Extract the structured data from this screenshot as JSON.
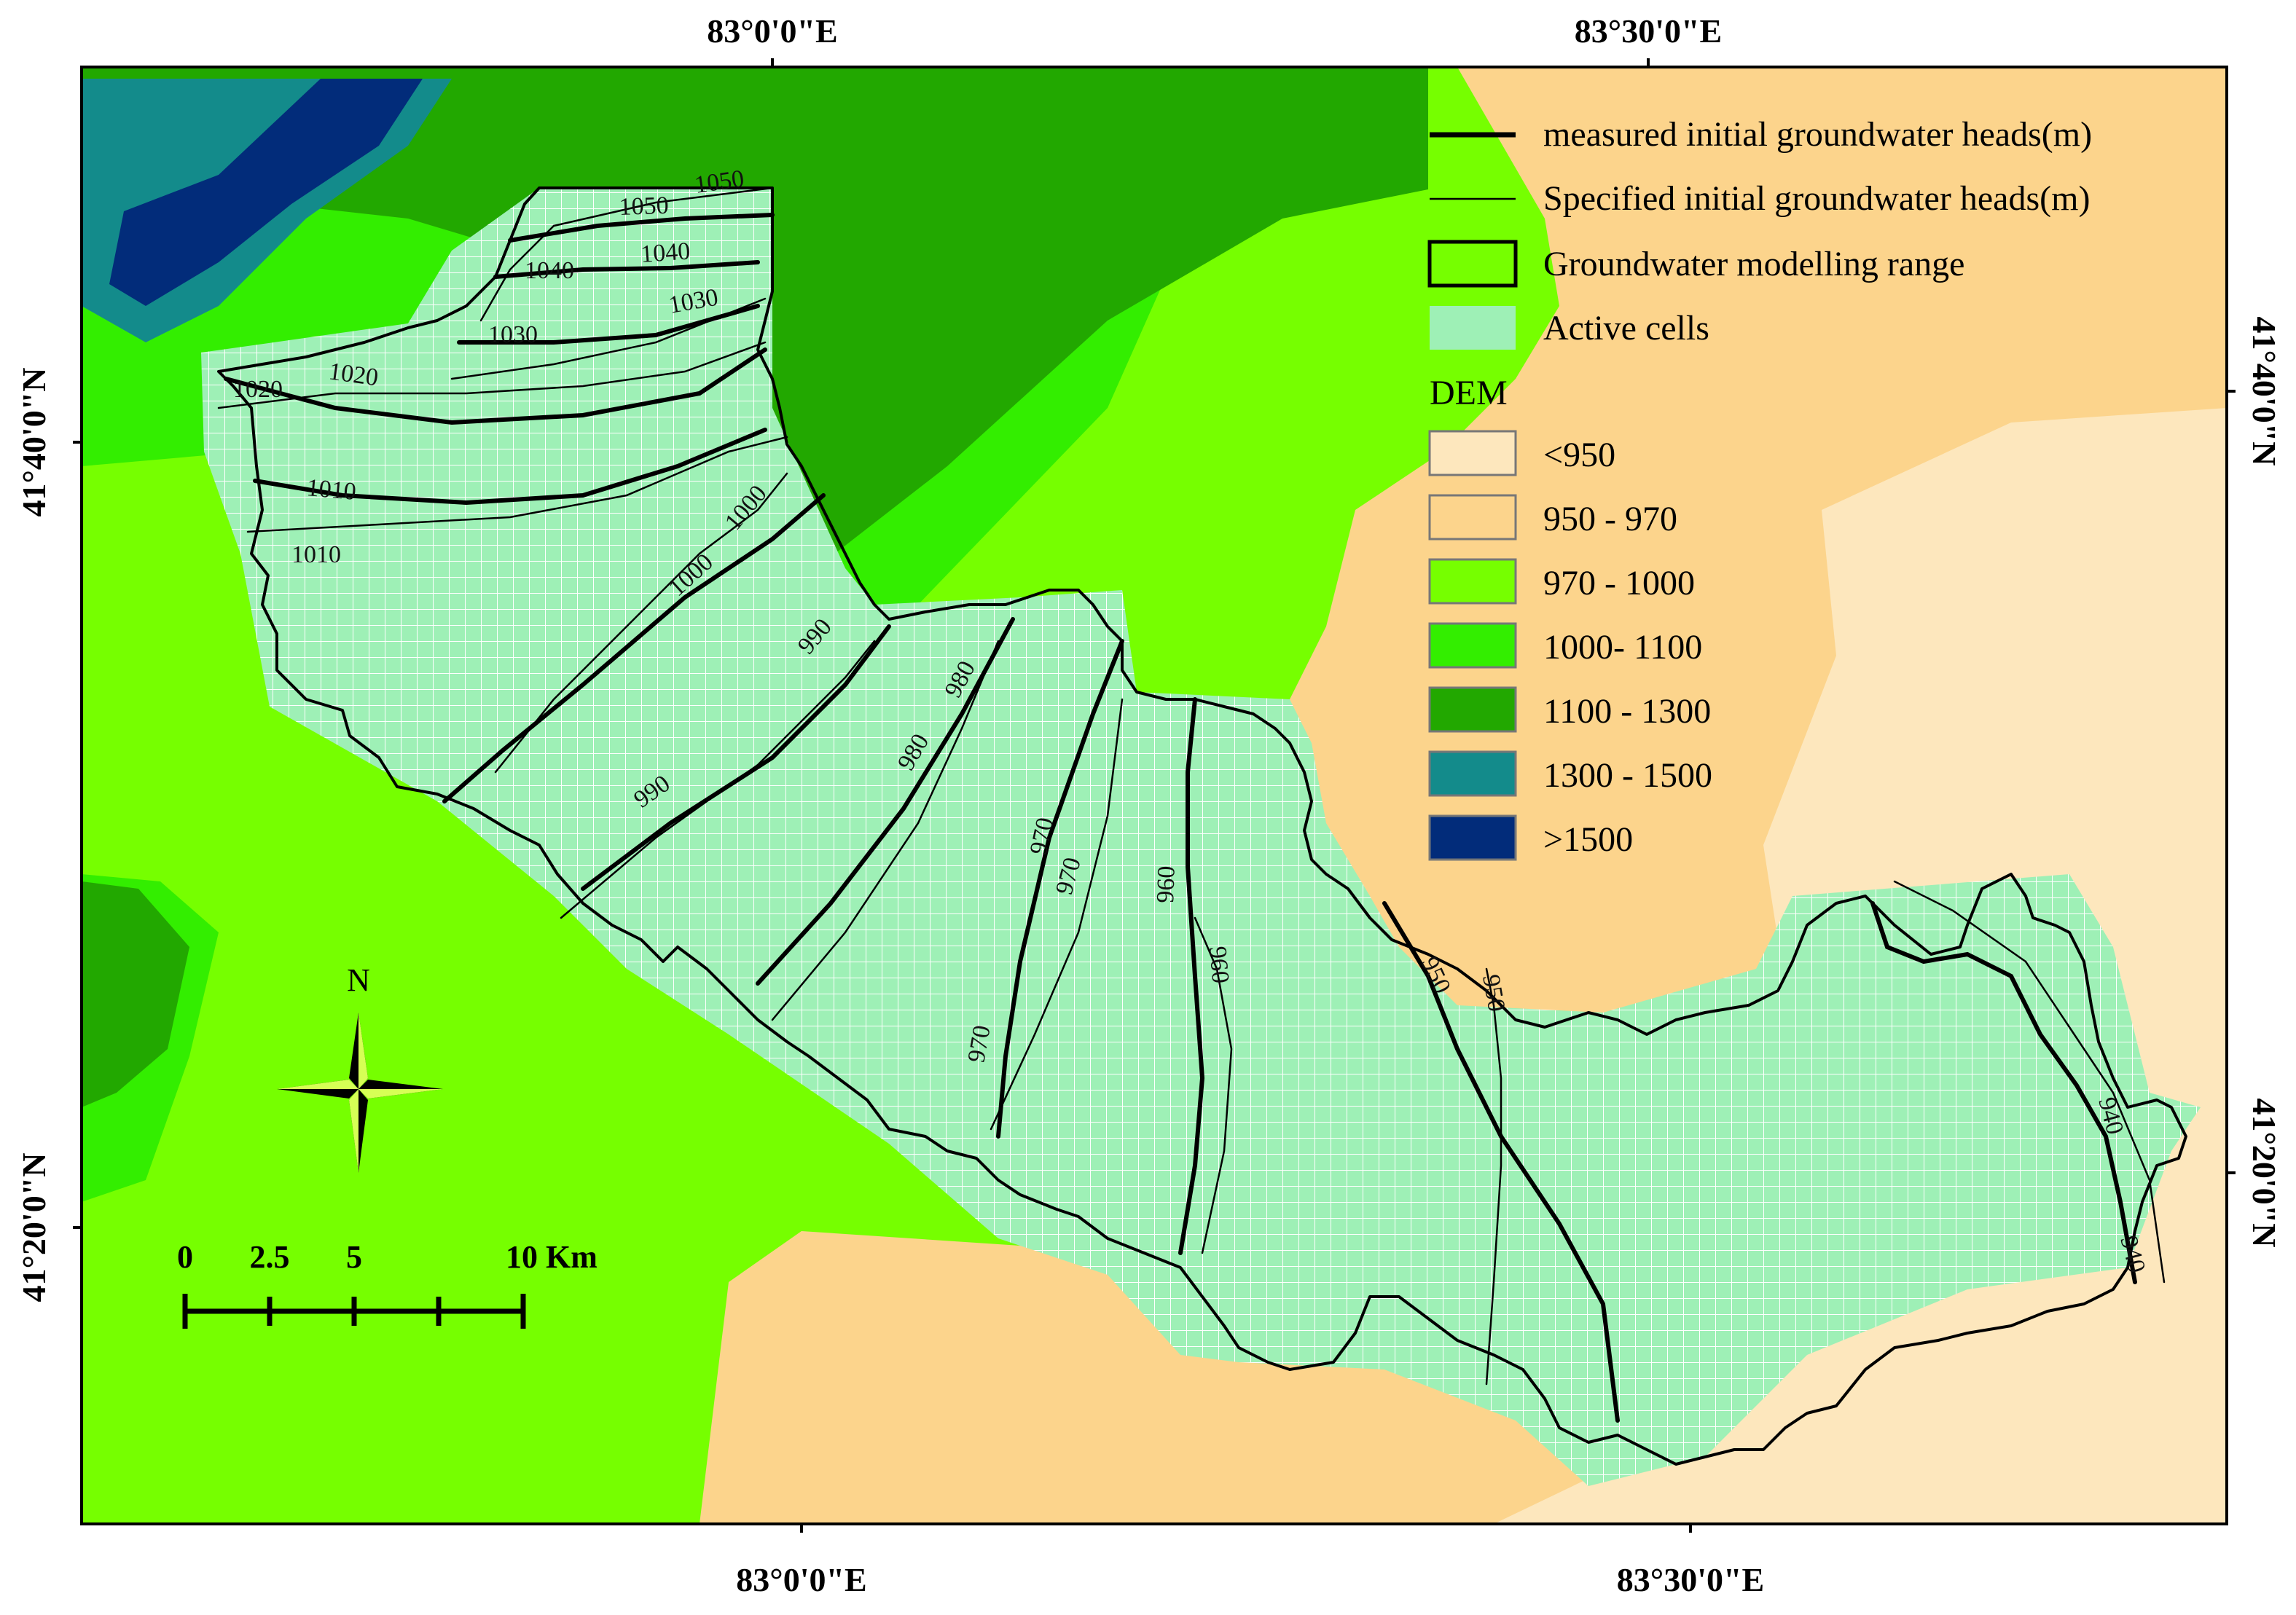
{
  "map": {
    "coordinates": {
      "top": [
        "83°0'0\"E",
        "83°30'0\"E"
      ],
      "bottom": [
        "83°0'0\"E",
        "83°30'0\"E"
      ],
      "left": [
        "41°40'0\"N",
        "41°20'0\"N"
      ],
      "right": [
        "41°40'0\"N",
        "41°20'0\"N"
      ]
    },
    "legend": {
      "lines": [
        {
          "label": "measured initial groundwater heads(m)",
          "style": "thick-line"
        },
        {
          "label": "Specified initial groundwater heads(m)",
          "style": "thin-line"
        },
        {
          "label": "Groundwater modelling range",
          "style": "outline-box"
        },
        {
          "label": "Active cells",
          "style": "filled-box",
          "color": "#9ef0b6"
        }
      ],
      "dem_title": "DEM",
      "dem_classes": [
        {
          "label": "<950",
          "color": "#fde7bd"
        },
        {
          "label": "950 - 970",
          "color": "#fcd48c"
        },
        {
          "label": "970 - 1000",
          "color": "#76ff00"
        },
        {
          "label": "1000- 1100",
          "color": "#33ee00"
        },
        {
          "label": "1100 - 1300",
          "color": "#22a800"
        },
        {
          "label": "1300 - 1500",
          "color": "#138b8b"
        },
        {
          "label": ">1500",
          "color": "#022c7a"
        }
      ]
    },
    "contour_labels": [
      "1050",
      "1050",
      "1040",
      "1040",
      "1030",
      "1030",
      "1020",
      "1020",
      "1010",
      "1010",
      "1000",
      "1000",
      "990",
      "990",
      "980",
      "980",
      "970",
      "970",
      "970",
      "960",
      "960",
      "950",
      "950",
      "940",
      "940"
    ],
    "north_arrow": {
      "label": "N"
    },
    "scale_bar": {
      "ticks": [
        "0",
        "2.5",
        "5",
        "10 Km"
      ]
    },
    "colors": {
      "active_cells": "#9ef0b6",
      "grid_lines": "#ffffff",
      "boundary": "#000000"
    }
  }
}
